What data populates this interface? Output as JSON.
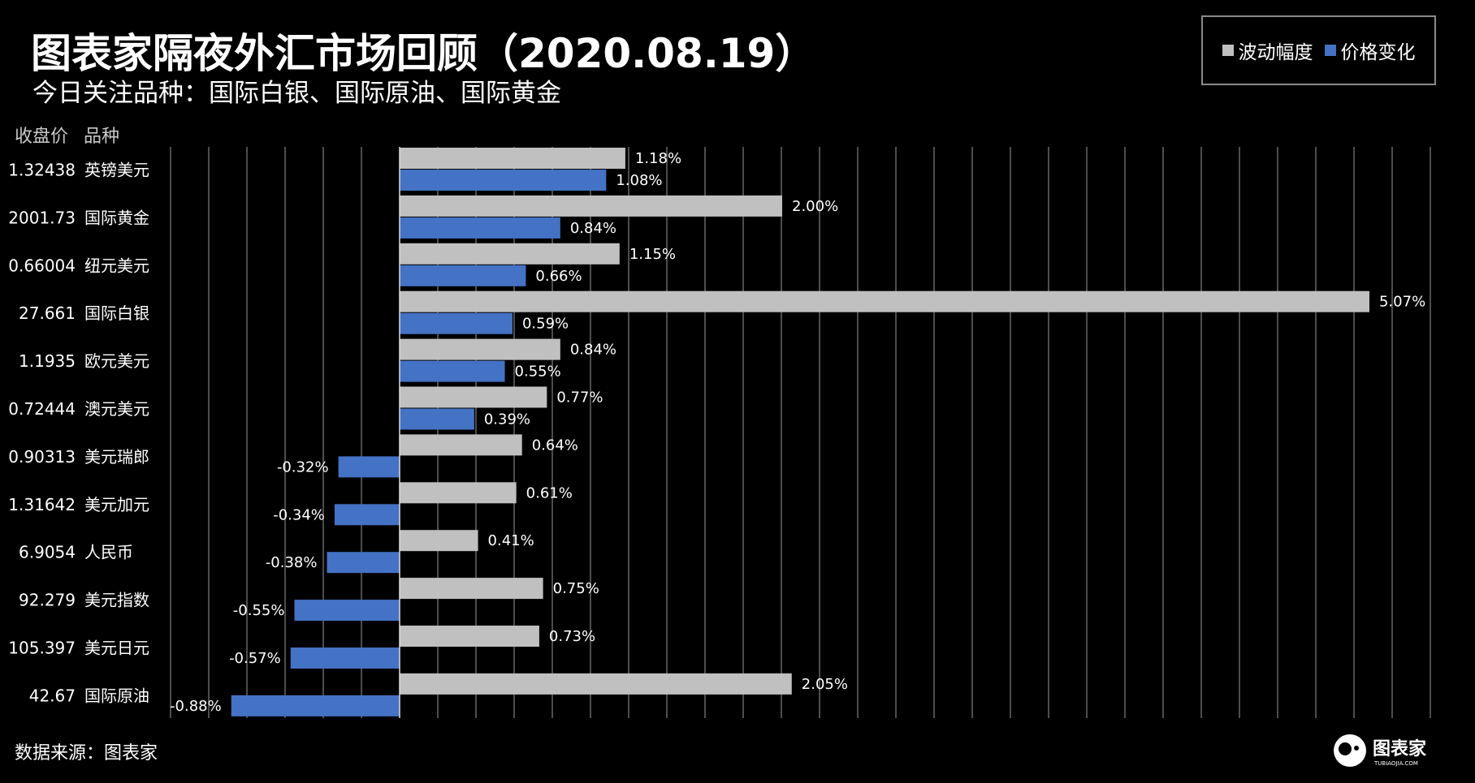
{
  "title": "图表家隔夜外汇市场回顾（2020.08.19）",
  "subtitle": "今日关注品种：国际白银、国际原油、国际黄金",
  "legend": {
    "volatility_label": "波动幅度",
    "change_label": "价格变化"
  },
  "headers": {
    "close_price": "收盘价",
    "variety": "品种"
  },
  "source": "数据来源：图表家",
  "brand": {
    "name": "图表家",
    "sub": "TUBIAOJIA.COM"
  },
  "colors": {
    "background": "#000000",
    "volatility": "#c0c0c0",
    "change": "#4472c4",
    "grid": "#9a9a9a"
  },
  "chart_data": {
    "type": "bar",
    "orientation": "horizontal",
    "categories": [
      "英镑美元",
      "国际黄金",
      "纽元美元",
      "国际白银",
      "欧元美元",
      "澳元美元",
      "美元瑞郎",
      "美元加元",
      "人民币",
      "美元指数",
      "美元日元",
      "国际原油"
    ],
    "close_prices": [
      "1.32438",
      "2001.73",
      "0.66004",
      "27.661",
      "1.1935",
      "0.72444",
      "0.90313",
      "1.31642",
      "6.9054",
      "92.279",
      "105.397",
      "42.67"
    ],
    "series": [
      {
        "name": "波动幅度",
        "values": [
          1.18,
          2.0,
          1.15,
          5.07,
          0.84,
          0.77,
          0.64,
          0.61,
          0.41,
          0.75,
          0.73,
          2.05
        ],
        "labels": [
          "1.18%",
          "2.00%",
          "1.15%",
          "5.07%",
          "0.84%",
          "0.77%",
          "0.64%",
          "0.61%",
          "0.41%",
          "0.75%",
          "0.73%",
          "2.05%"
        ]
      },
      {
        "name": "价格变化",
        "values": [
          1.08,
          0.84,
          0.66,
          0.59,
          0.55,
          0.39,
          -0.32,
          -0.34,
          -0.38,
          -0.55,
          -0.57,
          -0.88
        ],
        "labels": [
          "1.08%",
          "0.84%",
          "0.66%",
          "0.59%",
          "0.55%",
          "0.39%",
          "-0.32%",
          "-0.34%",
          "-0.38%",
          "-0.55%",
          "-0.57%",
          "-0.88%"
        ]
      }
    ],
    "xlim": [
      -1.2,
      5.4
    ],
    "grid": true,
    "legend_position": "top-right"
  }
}
